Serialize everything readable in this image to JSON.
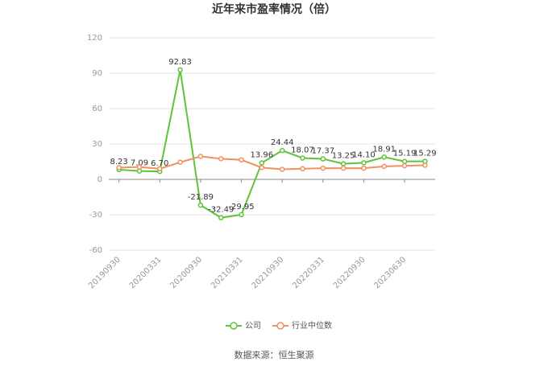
{
  "chart_data": {
    "type": "line",
    "title": "近年来市盈率情况（倍）",
    "categories": [
      "20190930",
      null,
      "20200331",
      null,
      "20200930",
      null,
      "20210331",
      null,
      "20210930",
      null,
      "20220331",
      null,
      "20220930",
      null,
      "20230630",
      null
    ],
    "series": [
      {
        "name": "公司",
        "color": "#5ec43a",
        "values": [
          8.23,
          7.09,
          6.7,
          92.83,
          -21.89,
          -32.49,
          -29.95,
          13.96,
          24.44,
          18.07,
          17.37,
          13.25,
          14.1,
          18.91,
          15.19,
          15.29
        ],
        "value_labels": [
          "8.23",
          "7.09",
          "6.70",
          "92.83",
          "-21.89",
          "-32.49",
          "-29.95",
          "13.96",
          "24.44",
          "18.07",
          "17.37",
          "13.25",
          "14.10",
          "18.91",
          "15.19",
          "15.29"
        ]
      },
      {
        "name": "行业中位数",
        "color": "#f0915f",
        "values": [
          10,
          10.5,
          9,
          14.5,
          19.5,
          17.5,
          16.5,
          10,
          8.5,
          9,
          9.5,
          9.5,
          9.5,
          11,
          11.5,
          12
        ]
      }
    ],
    "ylim": [
      -60,
      120
    ],
    "yticks": [
      -60,
      -30,
      0,
      30,
      60,
      90,
      120
    ],
    "grid": true,
    "source": "数据来源：恒生聚源"
  }
}
